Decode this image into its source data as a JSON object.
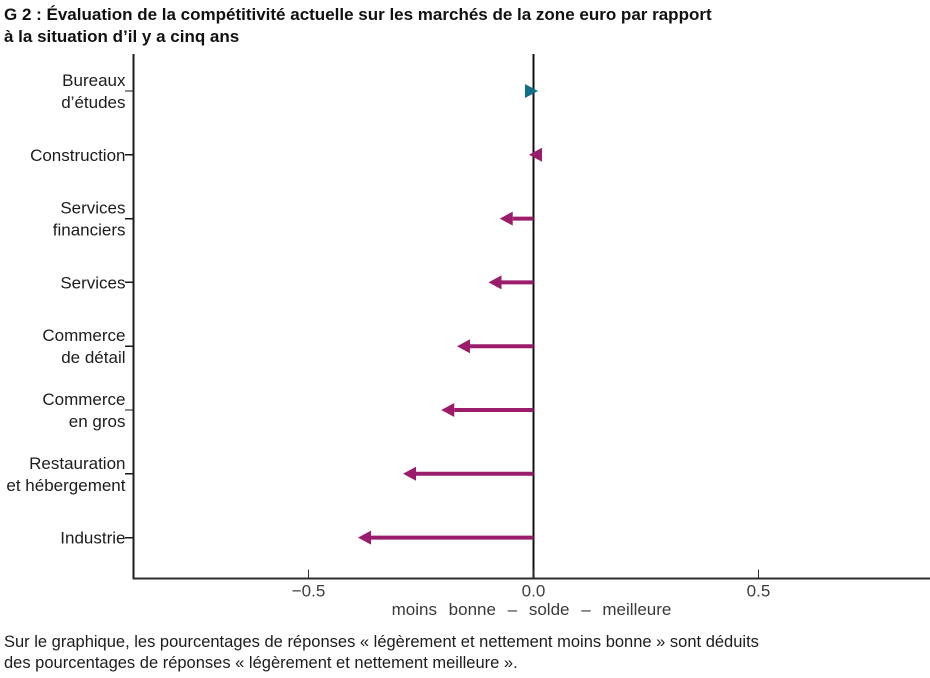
{
  "title": {
    "lines": [
      "G 2 : Évaluation de la compétitivité actuelle sur les marchés de la zone euro par rapport",
      "à la situation d’il y a cinq ans"
    ]
  },
  "chart_data": {
    "type": "bar",
    "subtype": "horizontal-arrows-from-zero",
    "orientation": "horizontal",
    "title": "G 2 : Évaluation de la compétitivité actuelle sur les marchés de la zone euro par rapport à la situation d’il y a cinq ans",
    "categories": [
      "Bureaux d’études",
      "Construction",
      "Services financiers",
      "Services",
      "Commerce de détail",
      "Commerce en gros",
      "Restauration et hébergement",
      "Industrie"
    ],
    "category_label_lines": [
      [
        "Bureaux",
        "d’études"
      ],
      [
        "Construction"
      ],
      [
        "Services",
        "financiers"
      ],
      [
        "Services"
      ],
      [
        "Commerce",
        "de détail"
      ],
      [
        "Commerce",
        "en gros"
      ],
      [
        "Restauration",
        "et hébergement"
      ],
      [
        "Industrie"
      ]
    ],
    "values": [
      0.01,
      -0.01,
      -0.075,
      -0.1,
      -0.17,
      -0.205,
      -0.29,
      -0.39
    ],
    "baseline": 0,
    "positive_color": "#0F7088",
    "negative_color": "#9B1C6B",
    "axis_color": "#1a1a1a",
    "xlabel": "moins bonne – solde – meilleure",
    "xticks": [
      -0.5,
      0,
      0.5
    ],
    "xtick_labels": [
      "−0.5",
      "0.0",
      "0.5"
    ],
    "xlim": [
      -0.89,
      0.88
    ],
    "grid": false,
    "legend": null
  },
  "footnote": {
    "lines": [
      "Sur le graphique, les pourcentages de réponses « légèrement et nettement moins bonne » sont déduits",
      "des pourcentages de réponses « légèrement et nettement meilleure »."
    ]
  }
}
